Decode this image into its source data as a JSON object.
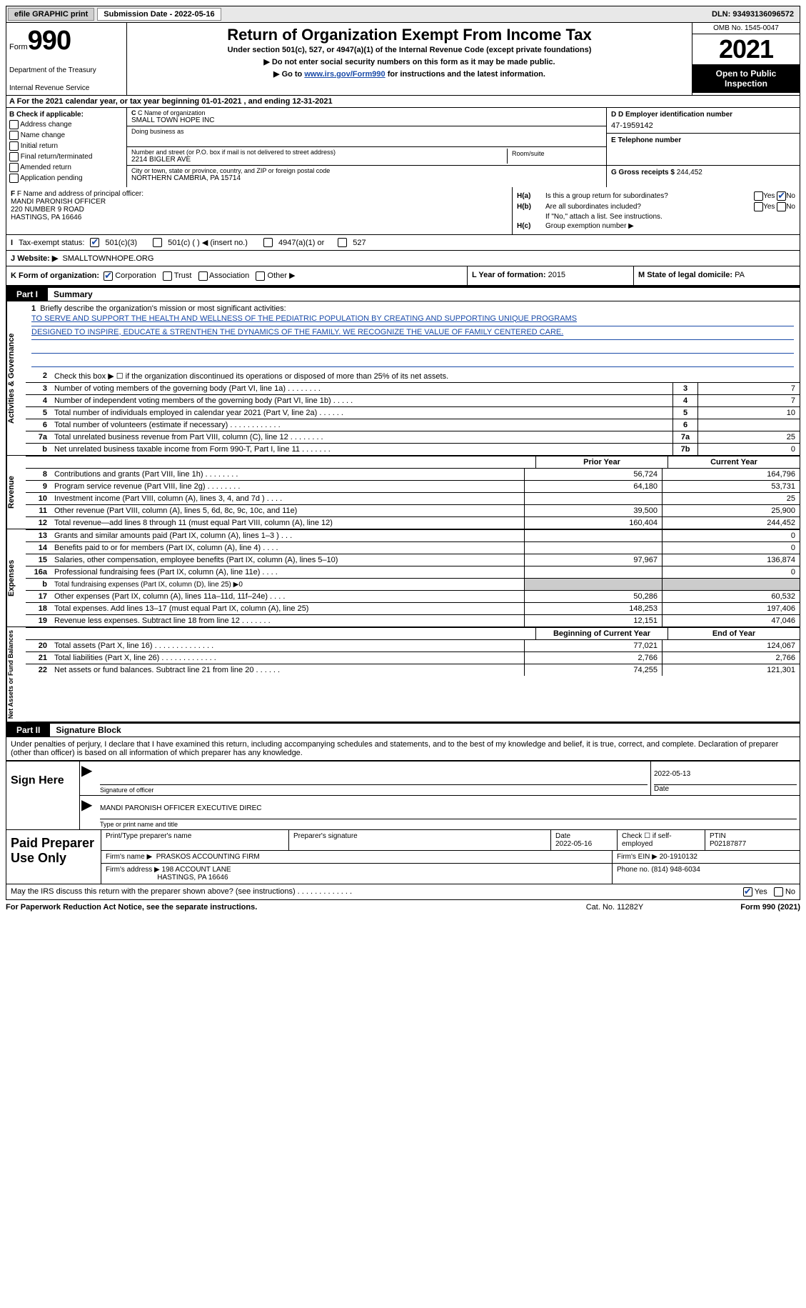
{
  "topbar": {
    "efile": "efile GRAPHIC print",
    "sub_label": "Submission Date - 2022-05-16",
    "dln": "DLN: 93493136096572"
  },
  "header": {
    "form_word": "Form",
    "form_num": "990",
    "dept": "Department of the Treasury",
    "irs": "Internal Revenue Service",
    "title": "Return of Organization Exempt From Income Tax",
    "sub1": "Under section 501(c), 527, or 4947(a)(1) of the Internal Revenue Code (except private foundations)",
    "sub2": "▶ Do not enter social security numbers on this form as it may be made public.",
    "sub3_pre": "▶ Go to ",
    "sub3_link": "www.irs.gov/Form990",
    "sub3_post": " for instructions and the latest information.",
    "omb": "OMB No. 1545-0047",
    "year": "2021",
    "open": "Open to Public Inspection"
  },
  "row_a": "A For the 2021 calendar year, or tax year beginning 01-01-2021   , and ending 12-31-2021",
  "box_b": {
    "label": "B Check if applicable:",
    "items": [
      "Address change",
      "Name change",
      "Initial return",
      "Final return/terminated",
      "Amended return",
      "Application pending"
    ]
  },
  "box_c": {
    "name_lbl": "C Name of organization",
    "name": "SMALL TOWN HOPE INC",
    "dba_lbl": "Doing business as",
    "addr_lbl": "Number and street (or P.O. box if mail is not delivered to street address)",
    "room_lbl": "Room/suite",
    "addr": "2214 BIGLER AVE",
    "city_lbl": "City or town, state or province, country, and ZIP or foreign postal code",
    "city": "NORTHERN CAMBRIA, PA   15714"
  },
  "box_d": {
    "ein_lbl": "D Employer identification number",
    "ein": "47-1959142",
    "tel_lbl": "E Telephone number",
    "gross_lbl": "G Gross receipts $",
    "gross": "244,452"
  },
  "box_f": {
    "lbl": "F Name and address of principal officer:",
    "name": "MANDI PARONISH OFFICER",
    "addr1": "220 NUMBER 9 ROAD",
    "addr2": "HASTINGS, PA   16646"
  },
  "box_h": {
    "a_lbl": "H(a)",
    "a_txt": "Is this a group return for subordinates?",
    "b_lbl": "H(b)",
    "b_txt": "Are all subordinates included?",
    "b_note": "If \"No,\" attach a list. See instructions.",
    "c_lbl": "H(c)",
    "c_txt": "Group exemption number ▶",
    "yes": "Yes",
    "no": "No"
  },
  "row_i": {
    "lbl": "I",
    "txt": "Tax-exempt status:",
    "o1": "501(c)(3)",
    "o2": "501(c) (   ) ◀ (insert no.)",
    "o3": "4947(a)(1) or",
    "o4": "527"
  },
  "row_j": {
    "lbl": "J",
    "txt": "Website: ▶",
    "val": "SMALLTOWNHOPE.ORG"
  },
  "row_k": {
    "lbl": "K Form of organization:",
    "o1": "Corporation",
    "o2": "Trust",
    "o3": "Association",
    "o4": "Other ▶"
  },
  "row_l": {
    "lbl": "L Year of formation:",
    "val": "2015"
  },
  "row_m": {
    "lbl": "M State of legal domicile:",
    "val": "PA"
  },
  "part1": {
    "tag": "Part I",
    "ttl": "Summary"
  },
  "mission": {
    "num": "1",
    "lbl": "Briefly describe the organization's mission or most significant activities:",
    "line1": "TO SERVE AND SUPPORT THE HEALTH AND WELLNESS OF THE PEDIATRIC POPULATION BY CREATING AND SUPPORTING UNIQUE PROGRAMS",
    "line2": "DESIGNED TO INSPIRE, EDUCATE & STRENTHEN THE DYNAMICS OF THE FAMILY. WE RECOGNIZE THE VALUE OF FAMILY CENTERED CARE."
  },
  "sections": {
    "gov": "Activities & Governance",
    "rev": "Revenue",
    "exp": "Expenses",
    "net": "Net Assets or Fund Balances"
  },
  "lines_gov": [
    {
      "n": "2",
      "t": "Check this box ▶ ☐ if the organization discontinued its operations or disposed of more than 25% of its net assets."
    },
    {
      "n": "3",
      "t": "Number of voting members of the governing body (Part VI, line 1a)   .    .    .    .    .    .    .    .",
      "b": "3",
      "v": "7"
    },
    {
      "n": "4",
      "t": "Number of independent voting members of the governing body (Part VI, line 1b)   .    .    .    .    .",
      "b": "4",
      "v": "7"
    },
    {
      "n": "5",
      "t": "Total number of individuals employed in calendar year 2021 (Part V, line 2a)   .    .    .    .    .    .",
      "b": "5",
      "v": "10"
    },
    {
      "n": "6",
      "t": "Total number of volunteers (estimate if necessary)   .    .    .    .    .    .    .    .    .    .    .    .",
      "b": "6",
      "v": ""
    },
    {
      "n": "7a",
      "t": "Total unrelated business revenue from Part VIII, column (C), line 12   .    .    .    .    .    .    .    .",
      "b": "7a",
      "v": "25"
    },
    {
      "n": "b",
      "t": "Net unrelated business taxable income from Form 990-T, Part I, line 11   .    .    .    .    .    .    .",
      "b": "7b",
      "v": "0"
    }
  ],
  "col_hdrs": {
    "prior": "Prior Year",
    "current": "Current Year",
    "begin": "Beginning of Current Year",
    "end": "End of Year"
  },
  "lines_rev": [
    {
      "n": "8",
      "t": "Contributions and grants (Part VIII, line 1h)   .    .    .    .    .    .    .    .",
      "p": "56,724",
      "c": "164,796"
    },
    {
      "n": "9",
      "t": "Program service revenue (Part VIII, line 2g)   .    .    .    .    .    .    .    .",
      "p": "64,180",
      "c": "53,731"
    },
    {
      "n": "10",
      "t": "Investment income (Part VIII, column (A), lines 3, 4, and 7d )   .    .    .    .",
      "p": "",
      "c": "25"
    },
    {
      "n": "11",
      "t": "Other revenue (Part VIII, column (A), lines 5, 6d, 8c, 9c, 10c, and 11e)",
      "p": "39,500",
      "c": "25,900"
    },
    {
      "n": "12",
      "t": "Total revenue—add lines 8 through 11 (must equal Part VIII, column (A), line 12)",
      "p": "160,404",
      "c": "244,452"
    }
  ],
  "lines_exp": [
    {
      "n": "13",
      "t": "Grants and similar amounts paid (Part IX, column (A), lines 1–3 )   .    .    .",
      "p": "",
      "c": "0"
    },
    {
      "n": "14",
      "t": "Benefits paid to or for members (Part IX, column (A), line 4)   .    .    .    .",
      "p": "",
      "c": "0"
    },
    {
      "n": "15",
      "t": "Salaries, other compensation, employee benefits (Part IX, column (A), lines 5–10)",
      "p": "97,967",
      "c": "136,874"
    },
    {
      "n": "16a",
      "t": "Professional fundraising fees (Part IX, column (A), line 11e)   .    .    .    .",
      "p": "",
      "c": "0"
    },
    {
      "n": "b",
      "t": "Total fundraising expenses (Part IX, column (D), line 25) ▶0",
      "shade": true
    },
    {
      "n": "17",
      "t": "Other expenses (Part IX, column (A), lines 11a–11d, 11f–24e)   .    .    .    .",
      "p": "50,286",
      "c": "60,532"
    },
    {
      "n": "18",
      "t": "Total expenses. Add lines 13–17 (must equal Part IX, column (A), line 25)",
      "p": "148,253",
      "c": "197,406"
    },
    {
      "n": "19",
      "t": "Revenue less expenses. Subtract line 18 from line 12   .    .    .    .    .    .    .",
      "p": "12,151",
      "c": "47,046"
    }
  ],
  "lines_net": [
    {
      "n": "20",
      "t": "Total assets (Part X, line 16)   .    .    .    .    .    .    .    .    .    .    .    .    .    .",
      "p": "77,021",
      "c": "124,067"
    },
    {
      "n": "21",
      "t": "Total liabilities (Part X, line 26)   .    .    .    .    .    .    .    .    .    .    .    .    .",
      "p": "2,766",
      "c": "2,766"
    },
    {
      "n": "22",
      "t": "Net assets or fund balances. Subtract line 21 from line 20   .    .    .    .    .    .",
      "p": "74,255",
      "c": "121,301"
    }
  ],
  "part2": {
    "tag": "Part II",
    "ttl": "Signature Block"
  },
  "perjury": "Under penalties of perjury, I declare that I have examined this return, including accompanying schedules and statements, and to the best of my knowledge and belief, it is true, correct, and complete. Declaration of preparer (other than officer) is based on all information of which preparer has any knowledge.",
  "sign": {
    "here": "Sign Here",
    "sig_lbl": "Signature of officer",
    "date": "2022-05-13",
    "date_lbl": "Date",
    "name": "MANDI PARONISH OFFICER  EXECUTIVE DIREC",
    "name_lbl": "Type or print name and title"
  },
  "paid": {
    "title": "Paid Preparer Use Only",
    "h1": "Print/Type preparer's name",
    "h2": "Preparer's signature",
    "h3": "Date",
    "h3v": "2022-05-16",
    "h4": "Check ☐ if self-employed",
    "h5": "PTIN",
    "h5v": "P02187877",
    "firm_lbl": "Firm's name      ▶",
    "firm": "PRASKOS ACCOUNTING FIRM",
    "ein_lbl": "Firm's EIN ▶",
    "ein": "20-1910132",
    "addr_lbl": "Firm's address ▶",
    "addr1": "198 ACCOUNT LANE",
    "addr2": "HASTINGS, PA   16646",
    "phone_lbl": "Phone no.",
    "phone": "(814) 948-6034"
  },
  "footer": {
    "q": "May the IRS discuss this return with the preparer shown above? (see instructions)   .    .    .    .    .    .    .    .    .    .    .    .    .",
    "yes": "Yes",
    "no": "No"
  },
  "bottom": {
    "b1": "For Paperwork Reduction Act Notice, see the separate instructions.",
    "b2": "Cat. No. 11282Y",
    "b3": "Form 990 (2021)"
  }
}
